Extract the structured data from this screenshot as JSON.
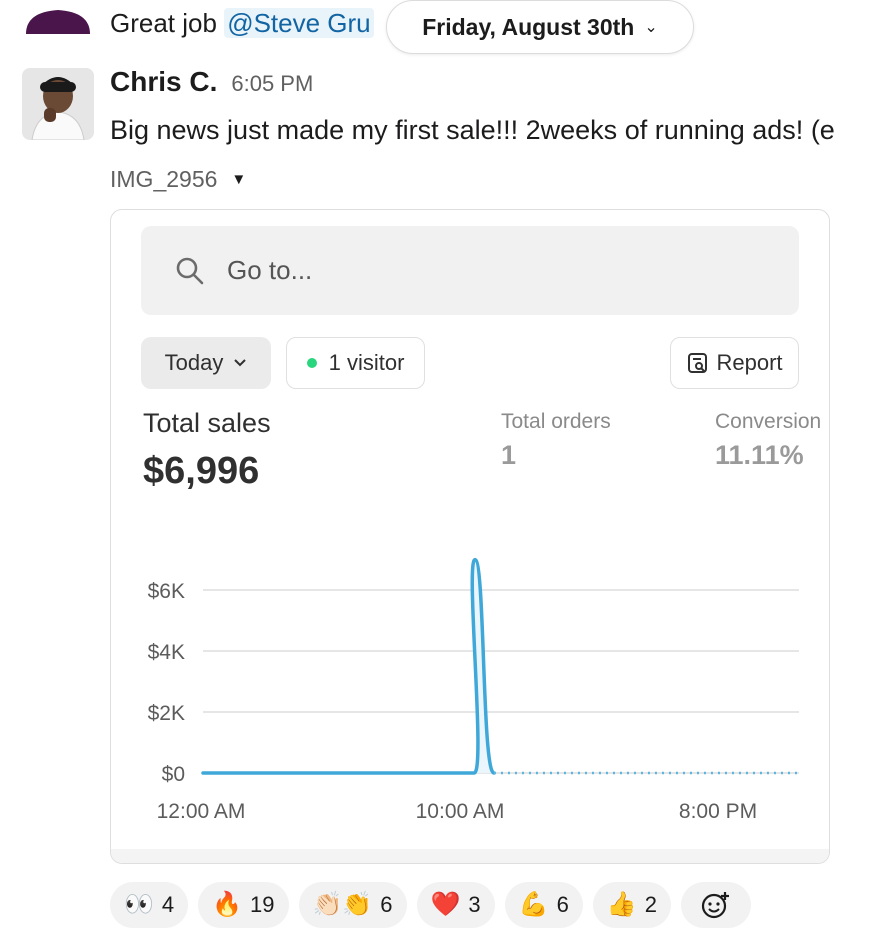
{
  "previous_message": {
    "text": "Great job",
    "mention": "@Steve Gru"
  },
  "date_divider": {
    "label": "Friday, August 30th"
  },
  "message": {
    "author": "Chris C.",
    "time": "6:05 PM",
    "text": "Big news just made my first sale!!! 2weeks of running ads! (e",
    "attachment_name": "IMG_2956"
  },
  "screenshot": {
    "search_placeholder": "Go to...",
    "date_filter": "Today",
    "visitors": "1 visitor",
    "report_label": "Report",
    "total_sales_label": "Total sales",
    "total_sales_value": "$6,996",
    "total_orders_label": "Total orders",
    "total_orders_value": "1",
    "conversion_label": "Conversion",
    "conversion_value": "11.11%",
    "accent_color": "#3fa8d8",
    "live_dot_color": "#29d67e"
  },
  "chart_data": {
    "type": "line",
    "y_ticks": [
      "$6K",
      "$4K",
      "$2K",
      "$0"
    ],
    "x_ticks": [
      "12:00 AM",
      "10:00 AM",
      "8:00 PM"
    ],
    "ylim": [
      0,
      7000
    ],
    "series": [
      {
        "values": [
          [
            0,
            0
          ],
          [
            10,
            0
          ],
          [
            11,
            6996
          ],
          [
            12,
            0
          ]
        ],
        "style": "solid"
      },
      {
        "values": [
          [
            12,
            0
          ],
          [
            23,
            0
          ]
        ],
        "style": "dotted"
      }
    ]
  },
  "reactions": [
    {
      "emoji": "👀",
      "count": "4",
      "name": "eyes"
    },
    {
      "emoji": "🔥",
      "count": "19",
      "name": "fire"
    },
    {
      "emoji": "👏🏻👏",
      "count": "6",
      "name": "clap"
    },
    {
      "emoji": "❤️",
      "count": "3",
      "name": "heart"
    },
    {
      "emoji": "💪",
      "count": "6",
      "name": "muscle"
    },
    {
      "emoji": "👍",
      "count": "2",
      "name": "thumbsup"
    }
  ]
}
